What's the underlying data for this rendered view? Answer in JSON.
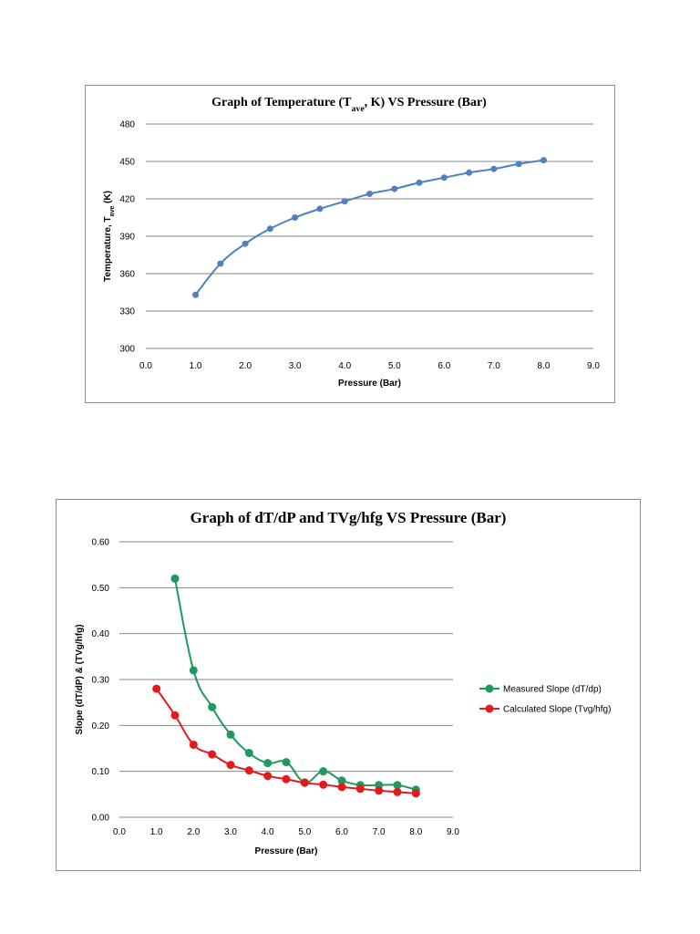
{
  "chart_data": [
    {
      "type": "line",
      "title_parts": {
        "before": "Graph of Temperature (T",
        "sub": "ave",
        "after": ", K) VS Pressure (Bar)"
      },
      "xlabel": "Pressure (Bar)",
      "ylabel_parts": {
        "before": "Temperature, T",
        "sub": "ave",
        "after": " (K)"
      },
      "xlim": [
        0,
        9
      ],
      "ylim": [
        300,
        480
      ],
      "x_ticks": [
        "0.0",
        "1.0",
        "2.0",
        "3.0",
        "4.0",
        "5.0",
        "6.0",
        "7.0",
        "8.0",
        "9.0"
      ],
      "y_ticks": [
        "300",
        "330",
        "360",
        "390",
        "420",
        "450",
        "480"
      ],
      "grid": true,
      "series": [
        {
          "color": "#4f81bd",
          "x": [
            1.0,
            1.5,
            2.0,
            2.5,
            3.0,
            3.5,
            4.0,
            4.5,
            5.0,
            5.5,
            6.0,
            6.5,
            7.0,
            7.5,
            8.0
          ],
          "y": [
            343,
            368,
            384,
            396,
            405,
            412,
            418,
            424,
            428,
            433,
            437,
            441,
            444,
            448,
            451
          ]
        }
      ]
    },
    {
      "type": "line",
      "title": "Graph of dT/dP and TVg/hfg VS Pressure (Bar)",
      "xlabel": "Pressure (Bar)",
      "ylabel": "Slope (dT/dP) & (TVg/hfg)",
      "xlim": [
        0,
        9
      ],
      "ylim": [
        0,
        0.6
      ],
      "x_ticks": [
        "0.0",
        "1.0",
        "2.0",
        "3.0",
        "4.0",
        "5.0",
        "6.0",
        "7.0",
        "8.0",
        "9.0"
      ],
      "y_ticks": [
        "0.00",
        "0.10",
        "0.20",
        "0.30",
        "0.40",
        "0.50",
        "0.60"
      ],
      "grid": true,
      "legend_position": "right",
      "series": [
        {
          "name": "Measured Slope (dT/dp)",
          "color": "#1e9a5c",
          "x": [
            1.5,
            2.0,
            2.5,
            3.0,
            3.5,
            4.0,
            4.5,
            5.0,
            5.5,
            6.0,
            6.5,
            7.0,
            7.5,
            8.0
          ],
          "y": [
            0.52,
            0.32,
            0.24,
            0.18,
            0.14,
            0.118,
            0.12,
            0.076,
            0.1,
            0.08,
            0.07,
            0.07,
            0.07,
            0.06
          ]
        },
        {
          "name": "Calculated Slope (Tvg/hfg)",
          "color": "#e31a1c",
          "x": [
            1.0,
            1.5,
            2.0,
            2.5,
            3.0,
            3.5,
            4.0,
            4.5,
            5.0,
            5.5,
            6.0,
            6.5,
            7.0,
            7.5,
            8.0
          ],
          "y": [
            0.28,
            0.222,
            0.158,
            0.137,
            0.114,
            0.102,
            0.09,
            0.083,
            0.075,
            0.071,
            0.066,
            0.062,
            0.058,
            0.055,
            0.052
          ]
        }
      ]
    }
  ]
}
